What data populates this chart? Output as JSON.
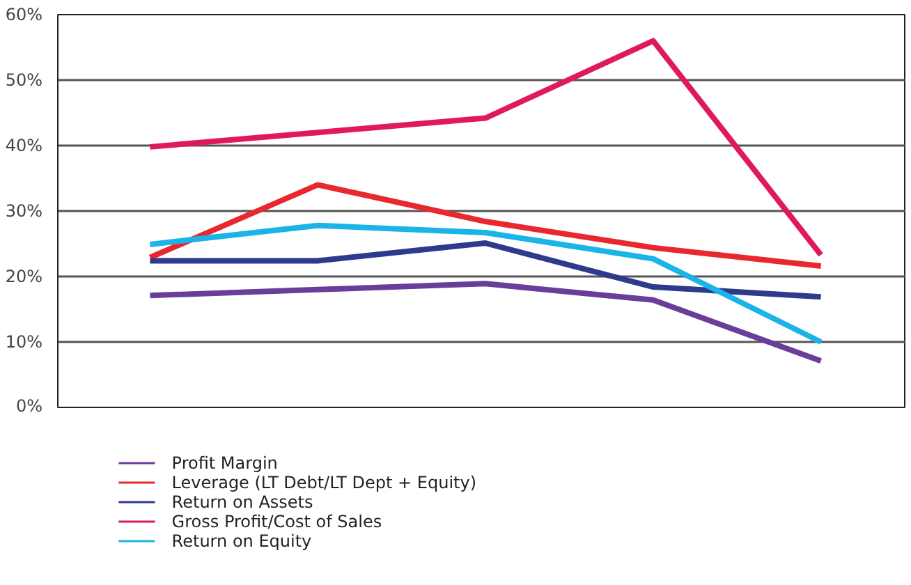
{
  "chart_data": {
    "type": "line",
    "categories": [
      null,
      null,
      null,
      null,
      null
    ],
    "series": [
      {
        "name": "Profit Margin",
        "color": "#6a3d9a",
        "values": [
          17.1,
          18,
          18.9,
          16.4,
          7.1
        ]
      },
      {
        "name": "Leverage (LT Debt/LT Dept + Equity)",
        "color": "#e8282e",
        "values": [
          22.9,
          34,
          28.4,
          24.4,
          21.6
        ]
      },
      {
        "name": "Return on Assets",
        "color": "#2e3a8c",
        "values": [
          22.4,
          22.4,
          25.1,
          18.4,
          16.9
        ]
      },
      {
        "name": "Gross Profit/Cost of Sales",
        "color": "#e0185c",
        "values": [
          39.8,
          42,
          44.2,
          56,
          23.3
        ]
      },
      {
        "name": "Return on Equity",
        "color": "#1ab4e8",
        "values": [
          24.9,
          27.8,
          26.7,
          22.7,
          10
        ]
      }
    ],
    "ylim": [
      0,
      60
    ],
    "yticks": [
      {
        "value": 0,
        "label": "0%"
      },
      {
        "value": 10,
        "label": "10%"
      },
      {
        "value": 20,
        "label": "20%"
      },
      {
        "value": 30,
        "label": "30%"
      },
      {
        "value": 40,
        "label": "40%"
      },
      {
        "value": 50,
        "label": "50%"
      },
      {
        "value": 60,
        "label": "60%"
      }
    ],
    "grid": "y",
    "legend": "bottom",
    "tick_labels": "y",
    "marker": "none",
    "line_style": "solid"
  }
}
